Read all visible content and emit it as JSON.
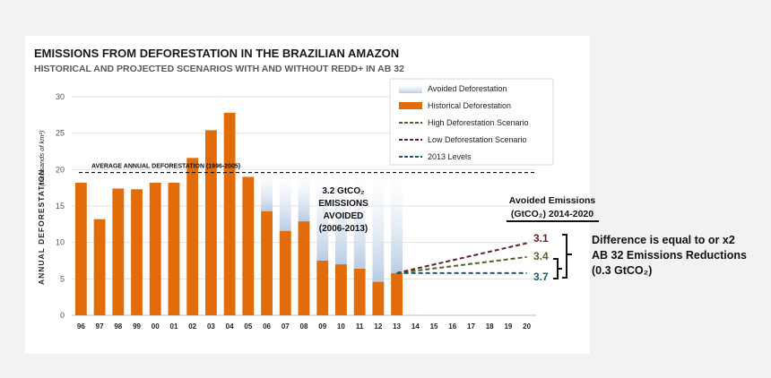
{
  "colors": {
    "historical": "#E36C0A",
    "avoided": "#B8CCE4",
    "high": "#4F6228",
    "low": "#632523",
    "levels2013": "#215868",
    "value_high": "#632523",
    "value_low": "#4F6228",
    "value_2013": "#215868"
  },
  "chart_data": {
    "type": "bar",
    "title": "EMISSIONS FROM DEFORESTATION IN THE BRAZILIAN AMAZON",
    "subtitle": "HISTORICAL AND PROJECTED SCENARIOS WITH AND WITHOUT REDD+ IN AB 32",
    "ylabel": "ANNUAL DEFORESTATION",
    "ylabel_units": "(thousands of km²)",
    "ylim": [
      0,
      30
    ],
    "yticks": [
      0,
      5,
      10,
      15,
      20,
      25,
      30
    ],
    "grid": true,
    "legend_position": "top-right",
    "categories": [
      "96",
      "97",
      "98",
      "99",
      "00",
      "01",
      "02",
      "03",
      "04",
      "05",
      "06",
      "07",
      "08",
      "09",
      "10",
      "11",
      "12",
      "13",
      "14",
      "15",
      "16",
      "17",
      "18",
      "19",
      "20"
    ],
    "series": [
      {
        "name": "Historical Deforestation",
        "values": [
          18.2,
          13.2,
          17.4,
          17.3,
          18.2,
          18.2,
          21.6,
          25.4,
          27.8,
          19.0,
          14.3,
          11.6,
          12.9,
          7.5,
          7.0,
          6.4,
          4.6,
          5.8,
          null,
          null,
          null,
          null,
          null,
          null,
          null
        ]
      },
      {
        "name": "Avoided Deforestation",
        "values": [
          null,
          null,
          null,
          null,
          null,
          null,
          null,
          null,
          null,
          null,
          5.3,
          8.0,
          6.7,
          12.1,
          12.6,
          13.2,
          15.0,
          13.8,
          null,
          null,
          null,
          null,
          null,
          null,
          null
        ]
      }
    ],
    "scenarios": [
      {
        "name": "High Deforestation Scenario",
        "x": [
          "13",
          "20"
        ],
        "y": [
          5.8,
          8.0
        ]
      },
      {
        "name": "Low Deforestation Scenario",
        "x": [
          "13",
          "20"
        ],
        "y": [
          5.8,
          9.9
        ]
      },
      {
        "name": "2013 Levels",
        "x": [
          "13",
          "20"
        ],
        "y": [
          5.8,
          5.8
        ]
      }
    ],
    "average": {
      "label": "AVERAGE ANNUAL DEFORESTATION (1996-2005)",
      "value": 19.6
    },
    "annotations": {
      "avoided_line1": "3.2 GtCO₂",
      "avoided_line2": "EMISSIONS",
      "avoided_line3": "AVOIDED",
      "avoided_line4": "(2006-2013)",
      "avoided_emissions_title1": "Avoided Emissions",
      "avoided_emissions_title2": "(GtCO₂) 2014-2020",
      "value_low": "3.1",
      "value_high": "3.4",
      "value_2013": "3.7",
      "difference_line1": "Difference is equal to or x2",
      "difference_line2": "AB 32 Emissions Reductions",
      "difference_line3": "(0.3 GtCO₂)"
    }
  }
}
